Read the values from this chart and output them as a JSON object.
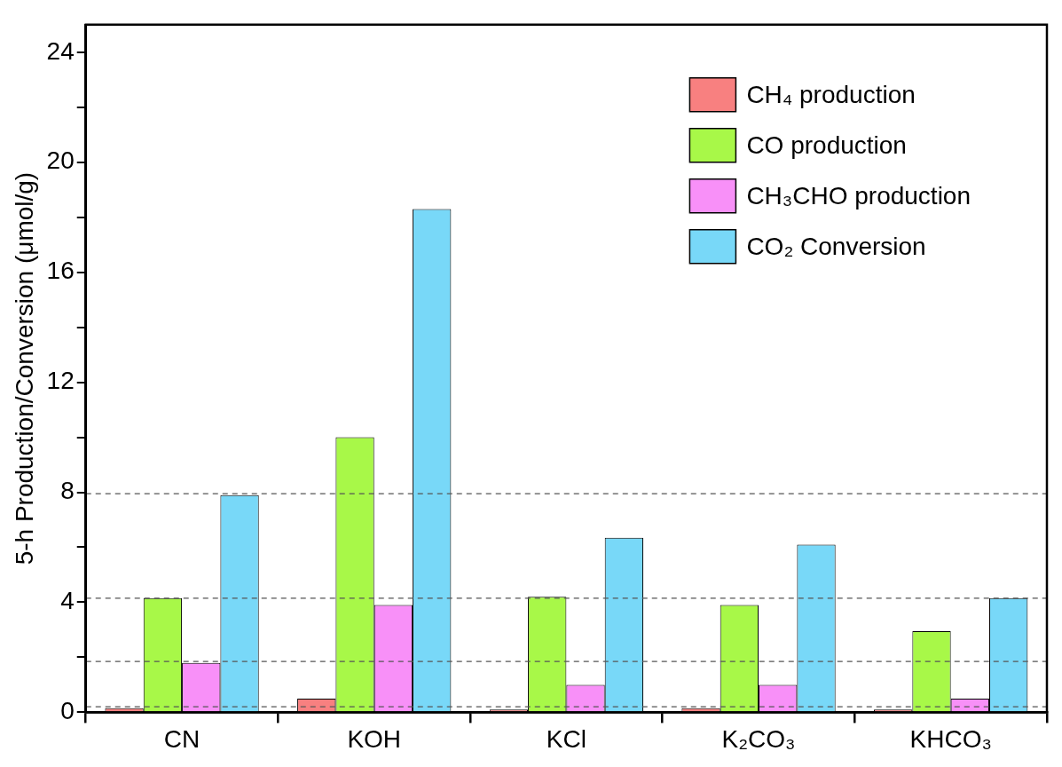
{
  "chart_data": {
    "type": "bar",
    "ylabel": "5-h Production/Conversion (μmol/g)",
    "categories": [
      "CN",
      "KOH",
      "KCl",
      "K₂CO₃",
      "KHCO₃"
    ],
    "series": [
      {
        "name": "CH₄ production",
        "color": "#f88080",
        "values": [
          0.15,
          0.5,
          0.1,
          0.15,
          0.1
        ]
      },
      {
        "name": "CO production",
        "color": "#a8f848",
        "values": [
          4.15,
          10,
          4.2,
          3.9,
          2.95
        ]
      },
      {
        "name": "CH₃CHO production",
        "color": "#f890f8",
        "values": [
          1.8,
          3.9,
          1.0,
          1.0,
          0.5
        ]
      },
      {
        "name": "CO₂ Conversion",
        "color": "#78d8f8",
        "values": [
          7.9,
          18.3,
          6.35,
          6.1,
          4.15
        ]
      }
    ],
    "ylim": [
      0,
      25
    ],
    "yticks": [
      0,
      {
        "value": 2,
        "label": null
      },
      4,
      {
        "value": 6,
        "label": null
      },
      8,
      {
        "value": 10,
        "label": null
      },
      12,
      {
        "value": 14,
        "label": null
      },
      16,
      {
        "value": 18,
        "label": null
      },
      20,
      {
        "value": 22,
        "label": null
      },
      24
    ],
    "ref_lines": [
      {
        "axis": "y",
        "value": 7.95,
        "color": "#555555",
        "line_style": "dashed"
      },
      {
        "axis": "y",
        "value": 4.15,
        "color": "#555555",
        "line_style": "dashed"
      },
      {
        "axis": "y",
        "value": 1.85,
        "color": "#555555",
        "line_style": "dashed"
      },
      {
        "axis": "y",
        "value": 0.2,
        "color": "#555555",
        "line_style": "dashed"
      }
    ],
    "grid": false,
    "legend": "top right"
  }
}
